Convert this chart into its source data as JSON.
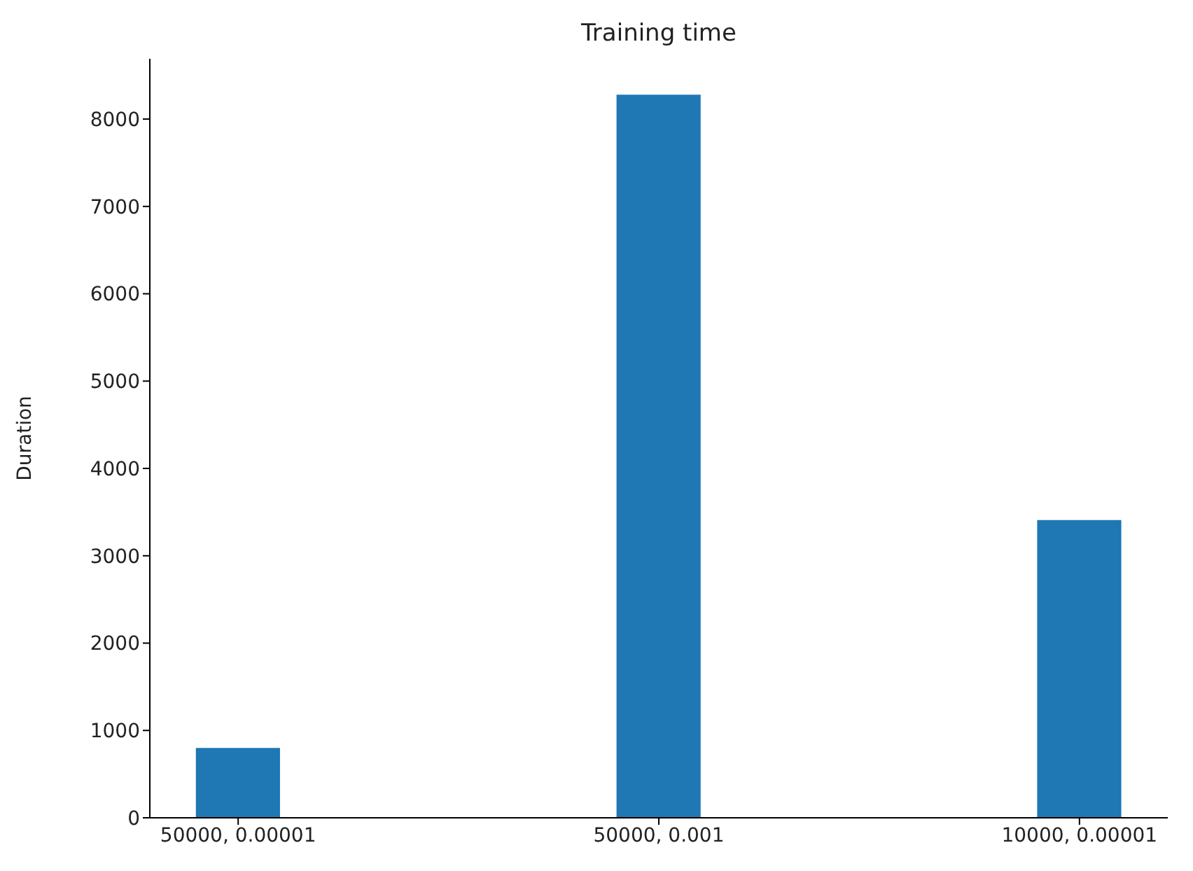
{
  "chart_data": {
    "type": "bar",
    "title": "Training time",
    "ylabel": "Duration",
    "categories": [
      "50000, 0.00001",
      "50000, 0.001",
      "10000, 0.00001"
    ],
    "values": [
      800,
      8280,
      3410
    ],
    "color": "#1f77b4",
    "ylim": [
      0,
      8690
    ],
    "yticks": [
      0,
      1000,
      2000,
      3000,
      4000,
      5000,
      6000,
      7000,
      8000
    ],
    "grid": false
  }
}
